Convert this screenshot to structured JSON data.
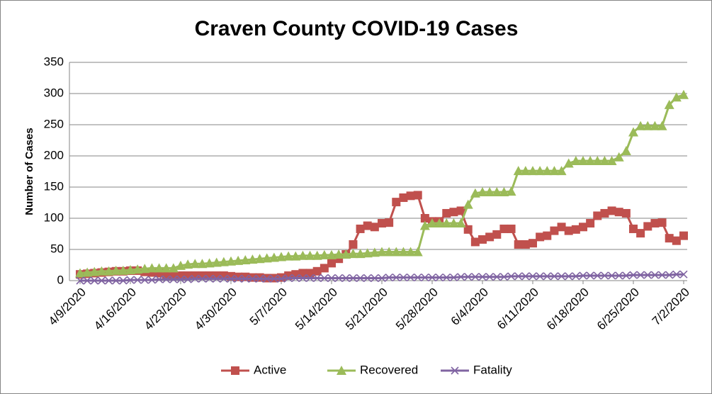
{
  "chart_data": {
    "type": "line",
    "title": "Craven County COVID-19 Cases",
    "y_label": "Number of Cases",
    "categories": [
      "4/9/2020",
      null,
      null,
      null,
      null,
      null,
      null,
      "4/16/2020",
      null,
      null,
      null,
      null,
      null,
      null,
      "4/23/2020",
      null,
      null,
      null,
      null,
      null,
      null,
      "4/30/2020",
      null,
      null,
      null,
      null,
      null,
      null,
      "5/7/2020",
      null,
      null,
      null,
      null,
      null,
      null,
      "5/14/2020",
      null,
      null,
      null,
      null,
      null,
      null,
      "5/21/2020",
      null,
      null,
      null,
      null,
      null,
      null,
      "5/28/2020",
      null,
      null,
      null,
      null,
      null,
      null,
      "6/4/2020",
      null,
      null,
      null,
      null,
      null,
      null,
      "6/11/2020",
      null,
      null,
      null,
      null,
      null,
      null,
      "6/18/2020",
      null,
      null,
      null,
      null,
      null,
      null,
      "6/25/2020",
      null,
      null,
      null,
      null,
      null,
      null,
      "7/2/2020"
    ],
    "series": [
      {
        "name": "Active",
        "color": "#c0504d",
        "marker": "square",
        "values": [
          10,
          11,
          12,
          13,
          14,
          15,
          15,
          16,
          16,
          14,
          13,
          12,
          10,
          9,
          8,
          8,
          8,
          8,
          8,
          8,
          8,
          7,
          6,
          6,
          5,
          5,
          4,
          4,
          5,
          8,
          10,
          12,
          12,
          15,
          20,
          28,
          35,
          42,
          58,
          83,
          88,
          86,
          92,
          93,
          126,
          133,
          136,
          137,
          100,
          95,
          95,
          108,
          110,
          112,
          82,
          62,
          66,
          70,
          74,
          83,
          83,
          58,
          58,
          60,
          70,
          72,
          80,
          86,
          80,
          82,
          86,
          92,
          104,
          108,
          112,
          110,
          108,
          83,
          76,
          87,
          92,
          93,
          68,
          64,
          72
        ]
      },
      {
        "name": "Recovered",
        "color": "#9bbb59",
        "marker": "triangle",
        "values": [
          12,
          13,
          14,
          15,
          15,
          16,
          16,
          17,
          18,
          19,
          20,
          20,
          20,
          20,
          24,
          26,
          27,
          27,
          28,
          29,
          30,
          31,
          32,
          33,
          34,
          35,
          36,
          37,
          38,
          39,
          39,
          40,
          40,
          40,
          41,
          41,
          42,
          42,
          43,
          43,
          44,
          45,
          46,
          46,
          46,
          46,
          46,
          46,
          88,
          92,
          92,
          92,
          92,
          92,
          122,
          140,
          142,
          142,
          142,
          142,
          143,
          176,
          176,
          176,
          176,
          176,
          176,
          176,
          188,
          192,
          192,
          192,
          192,
          192,
          192,
          198,
          208,
          238,
          248,
          248,
          248,
          248,
          282,
          294,
          298
        ]
      },
      {
        "name": "Fatality",
        "color": "#8064a2",
        "marker": "x",
        "values": [
          0,
          0,
          0,
          0,
          0,
          0,
          0,
          1,
          1,
          1,
          1,
          2,
          2,
          2,
          2,
          2,
          3,
          3,
          3,
          3,
          3,
          3,
          3,
          3,
          3,
          3,
          3,
          3,
          3,
          4,
          4,
          4,
          4,
          4,
          4,
          4,
          4,
          4,
          4,
          4,
          4,
          4,
          4,
          5,
          5,
          5,
          5,
          5,
          5,
          5,
          5,
          5,
          5,
          6,
          6,
          6,
          6,
          6,
          6,
          6,
          7,
          7,
          7,
          7,
          7,
          7,
          7,
          7,
          7,
          7,
          8,
          8,
          8,
          8,
          8,
          8,
          8,
          9,
          9,
          9,
          9,
          9,
          9,
          10,
          10
        ]
      }
    ],
    "ylim": [
      0,
      350
    ],
    "yticks": [
      0,
      50,
      100,
      150,
      200,
      250,
      300,
      350
    ],
    "grid": true,
    "legend": "bottom"
  }
}
